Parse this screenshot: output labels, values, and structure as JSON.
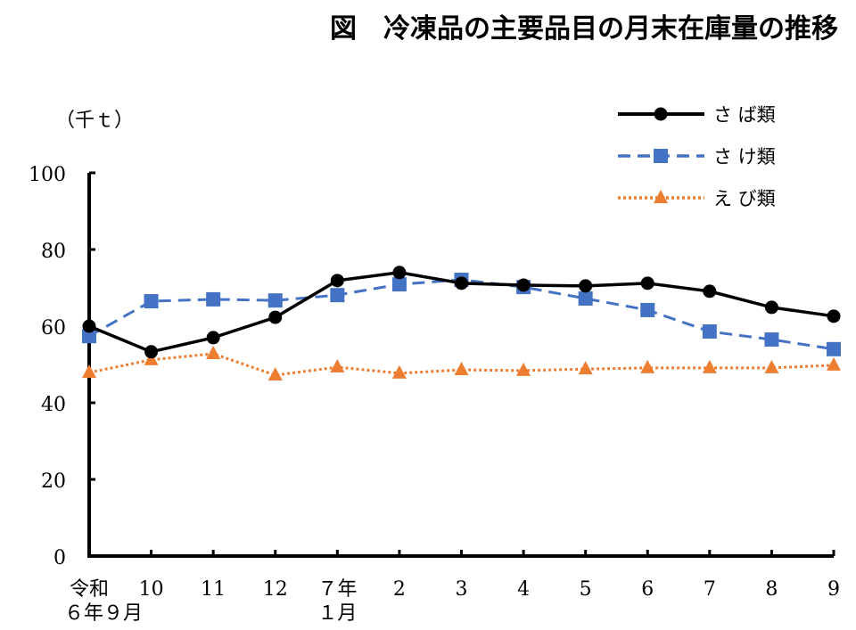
{
  "chart_data": {
    "type": "line",
    "title": "図　冷凍品の主要品目の月末在庫量の推移",
    "ylabel": "（千ｔ）",
    "xlabel": "",
    "ylim": [
      0,
      100
    ],
    "yticks": [
      "0",
      "20",
      "40",
      "60",
      "80",
      "100"
    ],
    "categories": [
      [
        "令和",
        "６年９月"
      ],
      [
        "10"
      ],
      [
        "11"
      ],
      [
        "12"
      ],
      [
        "７年",
        "１月"
      ],
      [
        "2"
      ],
      [
        "3"
      ],
      [
        "4"
      ],
      [
        "5"
      ],
      [
        "6"
      ],
      [
        "7"
      ],
      [
        "8"
      ],
      [
        "9"
      ]
    ],
    "grid": false,
    "legend": "top-right",
    "series": [
      {
        "name": "さ ば類",
        "color": "#000000",
        "marker": "circle",
        "dash": "solid",
        "values": [
          60.0,
          53.3,
          57.0,
          62.3,
          71.9,
          74.0,
          71.2,
          70.7,
          70.5,
          71.2,
          69.1,
          64.9,
          62.6
        ]
      },
      {
        "name": "さ け類",
        "color": "#4472C4",
        "marker": "square",
        "dash": "dashed",
        "values": [
          57.4,
          66.5,
          67.0,
          66.7,
          68.1,
          70.9,
          72.1,
          70.2,
          67.2,
          64.2,
          58.6,
          56.5,
          54.0
        ]
      },
      {
        "name": "え び類",
        "color": "#ED7D31",
        "marker": "triangle",
        "dash": "dotted",
        "values": [
          47.9,
          51.2,
          52.8,
          47.2,
          49.3,
          47.7,
          48.6,
          48.4,
          48.8,
          49.1,
          49.1,
          49.1,
          49.8
        ]
      }
    ]
  }
}
